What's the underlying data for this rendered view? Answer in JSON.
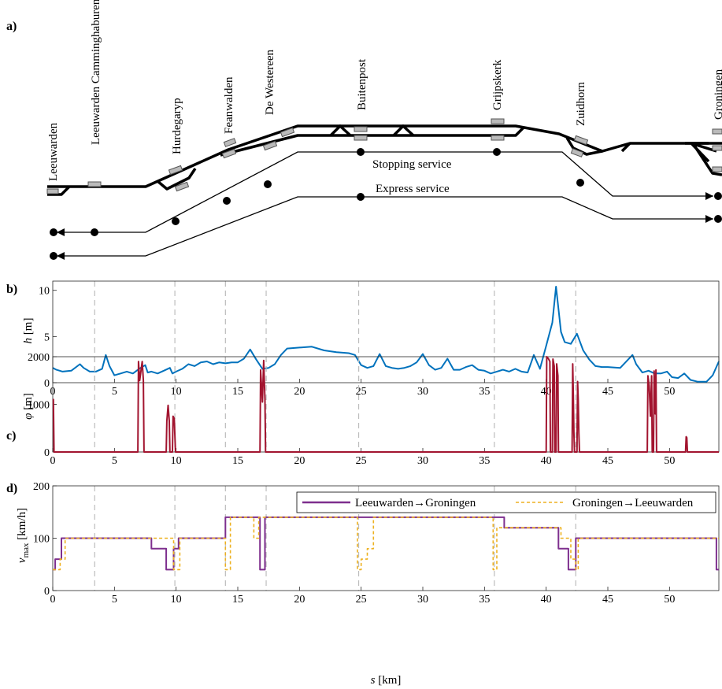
{
  "panels": {
    "a": "a)",
    "b": "b)",
    "c": "c)",
    "d": "d)"
  },
  "schematic": {
    "stations": [
      "Leeuwarden",
      "Leeuwarden Camminghaburen",
      "Hurdegaryp",
      "Feanwalden",
      "De Westereen",
      "Buitenpost",
      "Grijpskerk",
      "Zuidhorn",
      "Groningen"
    ],
    "stopping_label": "Stopping service",
    "express_label": "Express service"
  },
  "chart_data": [
    {
      "type": "line",
      "panel": "b",
      "ylabel_var": "h",
      "ylabel_unit": "[m]",
      "xlim": [
        0,
        54
      ],
      "ylim": [
        0,
        11
      ],
      "xticks": [
        0,
        5,
        10,
        15,
        20,
        25,
        30,
        35,
        40,
        45,
        50
      ],
      "yticks": [
        0,
        5,
        10
      ],
      "station_km": [
        3.4,
        9.9,
        14.0,
        17.3,
        24.8,
        35.8,
        42.4
      ],
      "color": "#0072BD",
      "x": [
        0,
        0.3,
        0.8,
        1.5,
        2.2,
        2.5,
        3.0,
        3.5,
        4.0,
        4.3,
        4.6,
        5.0,
        5.5,
        6.0,
        6.5,
        7.0,
        7.5,
        7.7,
        8.0,
        8.5,
        9.0,
        9.5,
        9.7,
        10.0,
        10.5,
        11.0,
        11.5,
        12.0,
        12.5,
        13.0,
        13.5,
        14.0,
        14.5,
        15.0,
        15.5,
        16.0,
        16.5,
        17.0,
        17.5,
        18.0,
        18.5,
        19.0,
        20.0,
        21.0,
        22.0,
        23.0,
        24.0,
        24.5,
        25.0,
        25.5,
        26.0,
        26.5,
        27.0,
        27.5,
        28.0,
        28.5,
        29.0,
        29.5,
        30.0,
        30.5,
        31.0,
        31.5,
        32.0,
        32.5,
        33.0,
        33.5,
        34.0,
        34.5,
        35.0,
        35.5,
        36.0,
        36.5,
        37.0,
        37.5,
        38.0,
        38.5,
        39.0,
        39.5,
        40.0,
        40.5,
        40.8,
        41.0,
        41.2,
        41.5,
        42.0,
        42.5,
        43.0,
        43.5,
        44.0,
        44.5,
        45.0,
        46.0,
        47.0,
        47.3,
        47.8,
        48.3,
        48.8,
        49.3,
        49.8,
        50.2,
        50.7,
        51.2,
        51.7,
        52.3,
        53.0,
        53.5,
        54.0
      ],
      "y": [
        1.6,
        1.4,
        1.2,
        1.3,
        2.0,
        1.6,
        1.2,
        1.2,
        1.5,
        3.0,
        1.8,
        0.8,
        1.0,
        1.2,
        1.0,
        1.5,
        1.9,
        1.1,
        1.2,
        1.0,
        1.3,
        1.6,
        1.0,
        1.2,
        1.5,
        2.0,
        1.8,
        2.2,
        2.3,
        2.0,
        2.2,
        2.1,
        2.2,
        2.2,
        2.6,
        3.6,
        2.5,
        1.5,
        1.6,
        2.0,
        3.0,
        3.7,
        3.8,
        3.9,
        3.5,
        3.3,
        3.2,
        3.0,
        1.9,
        1.6,
        1.8,
        3.1,
        1.8,
        1.6,
        1.5,
        1.6,
        1.8,
        2.2,
        3.1,
        1.9,
        1.4,
        1.6,
        2.6,
        1.4,
        1.4,
        1.7,
        1.9,
        1.4,
        1.3,
        1.0,
        1.2,
        1.4,
        1.2,
        1.5,
        1.2,
        1.1,
        3.0,
        1.5,
        4.0,
        6.5,
        10.4,
        8.0,
        5.5,
        4.4,
        4.2,
        5.3,
        3.5,
        2.5,
        1.8,
        1.7,
        1.7,
        1.6,
        3.0,
        2.0,
        1.1,
        1.3,
        1.0,
        1.0,
        1.2,
        0.6,
        0.5,
        1.0,
        0.3,
        0.1,
        0.1,
        0.8,
        2.3
      ]
    },
    {
      "type": "line",
      "panel": "c",
      "ylabel_var": "φ",
      "ylabel_unit": "[m]",
      "xlim": [
        0,
        54
      ],
      "ylim": [
        0,
        2000
      ],
      "xticks": [
        0,
        5,
        10,
        15,
        20,
        25,
        30,
        35,
        40,
        45,
        50
      ],
      "yticks": [
        0,
        1000,
        2000
      ],
      "station_km": [
        3.4,
        9.9,
        14.0,
        17.3,
        24.8,
        35.8,
        42.4
      ],
      "color": "#A2142F",
      "x": [
        0,
        0.05,
        0.1,
        0.15,
        6.9,
        6.95,
        7.05,
        7.25,
        7.35,
        7.4,
        9.2,
        9.25,
        9.35,
        9.45,
        9.5,
        9.7,
        9.75,
        9.85,
        9.95,
        10.0,
        16.8,
        16.85,
        17.0,
        17.1,
        17.2,
        17.25,
        40.0,
        40.05,
        40.2,
        40.3,
        40.35,
        40.5,
        40.55,
        40.65,
        40.7,
        40.8,
        40.85,
        40.95,
        41.0,
        42.1,
        42.15,
        42.2,
        42.25,
        42.3,
        42.5,
        42.55,
        42.6,
        42.65,
        42.7,
        48.2,
        48.25,
        48.35,
        48.45,
        48.55,
        48.6,
        48.7,
        48.75,
        48.85,
        48.9,
        48.95,
        51.3,
        51.35,
        51.4,
        51.45,
        54.0
      ],
      "y": [
        1100,
        1100,
        0,
        0,
        0,
        1900,
        1500,
        1900,
        1500,
        0,
        0,
        650,
        980,
        650,
        0,
        0,
        750,
        700,
        0,
        0,
        0,
        1720,
        1050,
        1920,
        1100,
        0,
        0,
        2000,
        1950,
        1900,
        0,
        0,
        1950,
        1800,
        0,
        0,
        1850,
        1600,
        0,
        0,
        1850,
        1250,
        400,
        0,
        0,
        1480,
        1100,
        400,
        0,
        0,
        1600,
        1400,
        750,
        1600,
        0,
        0,
        1700,
        800,
        1720,
        0,
        0,
        320,
        300,
        0,
        0
      ]
    },
    {
      "type": "line",
      "panel": "d",
      "ylabel_var": "v",
      "ylabel_sub": "max",
      "ylabel_unit": "[km/h]",
      "xlabel_var": "s",
      "xlabel_unit": "[km]",
      "xlim": [
        0,
        54
      ],
      "ylim": [
        0,
        200
      ],
      "xticks": [
        0,
        5,
        10,
        15,
        20,
        25,
        30,
        35,
        40,
        45,
        50
      ],
      "yticks": [
        0,
        100,
        200
      ],
      "station_km": [
        3.4,
        9.9,
        14.0,
        17.3,
        24.8,
        35.8,
        42.4
      ],
      "series": [
        {
          "name": "Leeuwarden→Groningen",
          "color": "#7E2F8E",
          "dash": "",
          "x": [
            0,
            0.2,
            0.2,
            0.7,
            0.7,
            8.0,
            8.0,
            9.2,
            9.2,
            9.8,
            9.8,
            10.2,
            10.2,
            14.0,
            14.0,
            16.8,
            16.8,
            17.2,
            17.2,
            36.6,
            36.6,
            41.0,
            41.0,
            41.8,
            41.8,
            42.4,
            42.4,
            53.8,
            53.8,
            54.0
          ],
          "y": [
            40,
            40,
            60,
            60,
            100,
            100,
            80,
            80,
            40,
            40,
            80,
            80,
            100,
            100,
            140,
            140,
            40,
            40,
            140,
            140,
            120,
            120,
            80,
            80,
            40,
            40,
            100,
            100,
            40,
            40
          ]
        },
        {
          "name": "Groningen→Leeuwarden",
          "color": "#EDB120",
          "dash": "4,3",
          "x": [
            0,
            0.6,
            0.6,
            1.0,
            1.0,
            8.0,
            8.0,
            9.8,
            9.8,
            10.3,
            10.3,
            14.0,
            14.0,
            14.4,
            14.4,
            16.3,
            16.3,
            16.7,
            16.7,
            24.7,
            24.7,
            25.0,
            25.0,
            25.5,
            25.5,
            26.0,
            26.0,
            35.7,
            35.7,
            36.0,
            36.0,
            41.2,
            41.2,
            42.0,
            42.0,
            42.4,
            42.4,
            42.6,
            42.6,
            54.0
          ],
          "y": [
            40,
            40,
            60,
            60,
            100,
            100,
            100,
            100,
            40,
            40,
            100,
            100,
            40,
            40,
            140,
            140,
            100,
            100,
            140,
            140,
            40,
            40,
            60,
            60,
            80,
            80,
            140,
            140,
            40,
            40,
            120,
            120,
            100,
            100,
            60,
            60,
            40,
            40,
            100,
            100
          ]
        }
      ]
    }
  ]
}
